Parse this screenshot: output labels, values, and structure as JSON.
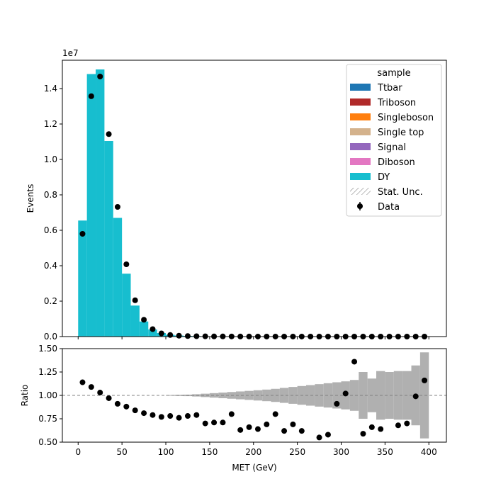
{
  "chart_data": [
    {
      "type": "bar",
      "panel": "main",
      "ylabel": "Events",
      "y_multiplier_label": "1e7",
      "ylim": [
        0,
        1.56
      ],
      "yticks": [
        "0.0",
        "0.2",
        "0.4",
        "0.6",
        "0.8",
        "1.0",
        "1.2",
        "1.4"
      ],
      "xlim": [
        -18,
        420
      ],
      "bin_edges": [
        0,
        10,
        20,
        30,
        40,
        50,
        60,
        70,
        80,
        90,
        100,
        110,
        120,
        130,
        140,
        150,
        160,
        170,
        180,
        190,
        200,
        210,
        220,
        230,
        240,
        250,
        260,
        270,
        280,
        290,
        300,
        310,
        320,
        330,
        340,
        350,
        360,
        370,
        380,
        390,
        400
      ],
      "stack_values": [
        0.655,
        1.482,
        1.508,
        1.104,
        0.67,
        0.355,
        0.175,
        0.085,
        0.04,
        0.02,
        0.01,
        0.006,
        0.004,
        0.003,
        0.002,
        0.001,
        0.001,
        0.001,
        0.0005,
        0.0005,
        0.0003,
        0.0003,
        0.0002,
        0.0002,
        0.0001,
        0.0001,
        0.0001,
        0.0001,
        0.0001,
        0.0001,
        0.0001,
        0,
        0,
        0,
        0,
        0,
        0,
        0,
        0,
        0
      ],
      "data_values": [
        0.58,
        1.357,
        1.468,
        1.143,
        0.732,
        0.408,
        0.205,
        0.095,
        0.042,
        0.018,
        0.009,
        0.005,
        0.003,
        0.002,
        0.0015,
        0.001,
        0.0008,
        0.0006,
        0.0004,
        0.0003,
        0.0002,
        0.0002,
        0.0002,
        0.0001,
        0.0001,
        0.0001,
        0.0001,
        0,
        0,
        0,
        0,
        0,
        0,
        0,
        0,
        0,
        0,
        0,
        0,
        0
      ],
      "legend": {
        "title": "sample",
        "position": "top-right",
        "entries": [
          {
            "label": "Ttbar",
            "color": "#1f77b4",
            "kind": "patch"
          },
          {
            "label": "Triboson",
            "color": "#b02a2a",
            "kind": "patch"
          },
          {
            "label": "Singleboson",
            "color": "#ff7f0e",
            "kind": "patch"
          },
          {
            "label": "Single top",
            "color": "#d4b28c",
            "kind": "patch"
          },
          {
            "label": "Signal",
            "color": "#9467bd",
            "kind": "patch"
          },
          {
            "label": "Diboson",
            "color": "#e377c2",
            "kind": "patch"
          },
          {
            "label": "DY",
            "color": "#17becf",
            "kind": "patch"
          },
          {
            "label": "Stat. Unc.",
            "color": "#888888",
            "kind": "hatch"
          },
          {
            "label": "Data",
            "color": "#000000",
            "kind": "marker"
          }
        ]
      },
      "stack_color": "#17becf"
    },
    {
      "type": "scatter",
      "panel": "ratio",
      "xlabel": "MET (GeV)",
      "ylabel": "Ratio",
      "ylim": [
        0.5,
        1.5
      ],
      "yticks": [
        "0.50",
        "0.75",
        "1.00",
        "1.25",
        "1.50"
      ],
      "xticks": [
        "0",
        "50",
        "100",
        "150",
        "200",
        "250",
        "300",
        "350",
        "400"
      ],
      "reference_line": 1.0,
      "x": [
        5,
        15,
        25,
        35,
        45,
        55,
        65,
        75,
        85,
        95,
        105,
        115,
        125,
        135,
        145,
        155,
        165,
        175,
        185,
        195,
        205,
        215,
        225,
        235,
        245,
        255,
        275,
        285,
        295,
        305,
        315,
        325,
        335,
        345,
        365,
        375,
        385,
        395
      ],
      "ratio": [
        1.14,
        1.09,
        1.03,
        0.97,
        0.91,
        0.88,
        0.84,
        0.81,
        0.79,
        0.77,
        0.78,
        0.76,
        0.78,
        0.79,
        0.7,
        0.71,
        0.71,
        0.8,
        0.63,
        0.66,
        0.64,
        0.69,
        0.8,
        0.62,
        0.69,
        0.62,
        0.55,
        0.58,
        0.91,
        1.02,
        1.36,
        0.59,
        0.66,
        0.64,
        0.68,
        0.7,
        0.99,
        1.16
      ],
      "unc_bin_edges": [
        100,
        110,
        120,
        130,
        140,
        150,
        160,
        170,
        180,
        190,
        200,
        210,
        220,
        230,
        240,
        250,
        260,
        270,
        280,
        290,
        300,
        310,
        320,
        330,
        340,
        350,
        360,
        370,
        380,
        390,
        400
      ],
      "unc_half_width": [
        0.004,
        0.006,
        0.008,
        0.012,
        0.018,
        0.024,
        0.03,
        0.036,
        0.042,
        0.048,
        0.055,
        0.062,
        0.07,
        0.08,
        0.09,
        0.1,
        0.11,
        0.12,
        0.13,
        0.14,
        0.15,
        0.165,
        0.25,
        0.18,
        0.26,
        0.25,
        0.26,
        0.26,
        0.32,
        0.46,
        0.52
      ],
      "unc_color": "#b0b0b0"
    }
  ]
}
